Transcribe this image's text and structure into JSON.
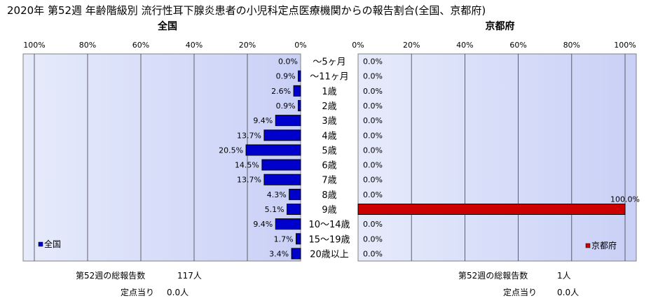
{
  "title": "2020年 第52週 年齢階級別 流行性耳下腺炎患者の小児科定点医療機関からの報告割合(全国、京都府)",
  "chart_data": {
    "type": "bar",
    "orientation": "horizontal",
    "categories": [
      "～5ヶ月",
      "～11ヶ月",
      "1歳",
      "2歳",
      "3歳",
      "4歳",
      "5歳",
      "6歳",
      "7歳",
      "8歳",
      "9歳",
      "10～14歳",
      "15～19歳",
      "20歳以上"
    ],
    "tick_labels": [
      "100%",
      "80%",
      "60%",
      "40%",
      "20%",
      "0%"
    ],
    "xlim": [
      0,
      100
    ],
    "grid": true,
    "panels": [
      {
        "id": "national",
        "title": "全国",
        "direction": "leftward",
        "series": [
          {
            "name": "全国",
            "color": "#0000cc",
            "values": [
              0.0,
              0.9,
              2.6,
              0.9,
              9.4,
              13.7,
              20.5,
              14.5,
              13.7,
              4.3,
              5.1,
              9.4,
              1.7,
              3.4
            ],
            "labels": [
              "0.0%",
              "0.9%",
              "2.6%",
              "0.9%",
              "9.4%",
              "13.7%",
              "20.5%",
              "14.5%",
              "13.7%",
              "4.3%",
              "5.1%",
              "9.4%",
              "1.7%",
              "3.4%"
            ]
          }
        ],
        "legend": "bottom-left",
        "total_label": "第52週の総報告数",
        "total_value": "117人",
        "per_site_label": "定点当り",
        "per_site_value": "0.0人"
      },
      {
        "id": "kyoto",
        "title": "京都府",
        "direction": "rightward",
        "series": [
          {
            "name": "京都府",
            "color": "#cc0000",
            "values": [
              0.0,
              0.0,
              0.0,
              0.0,
              0.0,
              0.0,
              0.0,
              0.0,
              0.0,
              0.0,
              100.0,
              0.0,
              0.0,
              0.0
            ],
            "labels": [
              "0.0%",
              "0.0%",
              "0.0%",
              "0.0%",
              "0.0%",
              "0.0%",
              "0.0%",
              "0.0%",
              "0.0%",
              "0.0%",
              "100.0%",
              "0.0%",
              "0.0%",
              "0.0%"
            ]
          }
        ],
        "legend": "bottom-right",
        "total_label": "第52週の総報告数",
        "total_value": "1人",
        "per_site_label": "定点当り",
        "per_site_value": "0.0人"
      }
    ]
  }
}
